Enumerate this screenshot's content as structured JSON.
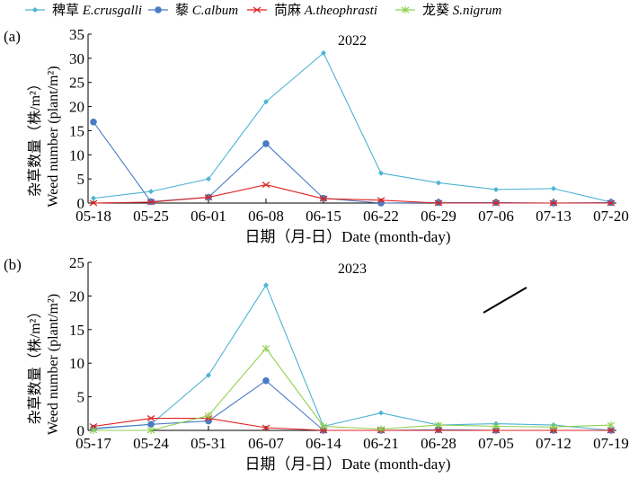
{
  "legend": [
    {
      "cn": "稗草",
      "latin": "E.crusgalli",
      "color": "#4db3d4",
      "marker": "diamond"
    },
    {
      "cn": "藜",
      "latin": "C.album",
      "color": "#4a7cc4",
      "marker": "circle"
    },
    {
      "cn": "苘麻",
      "latin": "A.theophrasti",
      "color": "#e02020",
      "marker": "x"
    },
    {
      "cn": "龙葵",
      "latin": "S.nigrum",
      "color": "#8fd14f",
      "marker": "star"
    }
  ],
  "chart_data": [
    {
      "type": "line",
      "panel": "(a)",
      "title": "2022",
      "xlabel": "日期（月-日）Date (month-day)",
      "ylabel_cn": "杂草数量（株/m²）",
      "ylabel_en": "Weed number (plant/m²)",
      "ylim": [
        0,
        35
      ],
      "yticks": [
        0,
        5,
        10,
        15,
        20,
        25,
        30,
        35
      ],
      "categories": [
        "05-18",
        "05-25",
        "06-01",
        "06-08",
        "06-15",
        "06-22",
        "06-29",
        "07-06",
        "07-13",
        "07-20"
      ],
      "series": [
        {
          "name": "E.crusgalli",
          "values": [
            1.0,
            2.4,
            5.0,
            21.0,
            31.1,
            6.2,
            4.2,
            2.8,
            3.0,
            0.2
          ]
        },
        {
          "name": "C.album",
          "values": [
            16.8,
            0.3,
            1.2,
            12.3,
            1.0,
            0,
            0.1,
            0.1,
            0,
            0.1
          ]
        },
        {
          "name": "A.theophrasti",
          "values": [
            0,
            0.2,
            1.2,
            3.8,
            0.9,
            0.6,
            0,
            0,
            0,
            0
          ]
        }
      ]
    },
    {
      "type": "line",
      "panel": "(b)",
      "title": "2023",
      "xlabel": "日期（月-日）Date (month-day)",
      "ylabel_cn": "杂草数量（株/m²）",
      "ylabel_en": "Weed number (plant/m²)",
      "ylim": [
        0,
        25
      ],
      "yticks": [
        0,
        5,
        10,
        15,
        20,
        25
      ],
      "categories": [
        "05-17",
        "05-24",
        "05-31",
        "06-07",
        "06-14",
        "06-21",
        "06-28",
        "07-05",
        "07-12",
        "07-19"
      ],
      "series": [
        {
          "name": "E.crusgalli",
          "values": [
            0.2,
            0.9,
            8.2,
            21.6,
            0.6,
            2.6,
            0.8,
            1.0,
            0.8,
            0
          ]
        },
        {
          "name": "C.album",
          "values": [
            0.3,
            0.9,
            1.4,
            7.4,
            0,
            0,
            0.1,
            0,
            0,
            0
          ]
        },
        {
          "name": "A.theophrasti",
          "values": [
            0.6,
            1.8,
            1.8,
            0.4,
            0,
            0,
            0,
            0,
            0,
            0
          ]
        },
        {
          "name": "S.nigrum",
          "values": [
            0,
            0,
            2.2,
            12.2,
            0.6,
            0.2,
            0.8,
            0.6,
            0.5,
            0.8
          ]
        }
      ]
    }
  ]
}
